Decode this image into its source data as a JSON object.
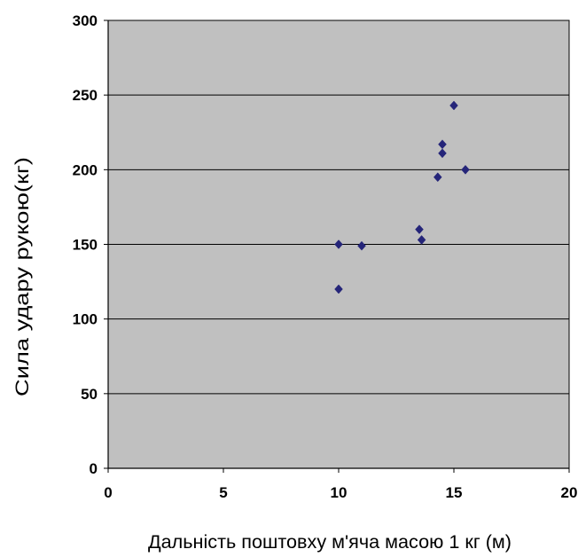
{
  "chart_data": {
    "type": "scatter",
    "title": "",
    "xlabel": "Дальність поштовху м'яча масою 1 кг (м)",
    "ylabel": "Сила удару рукою(кг)",
    "xlim": [
      0,
      20
    ],
    "ylim": [
      0,
      300
    ],
    "x_ticks": [
      "0",
      "5",
      "10",
      "15",
      "20"
    ],
    "y_ticks": [
      "0",
      "50",
      "100",
      "150",
      "200",
      "250",
      "300"
    ],
    "grid": "horizontal",
    "legend": "none",
    "series": [
      {
        "points": [
          {
            "x": 10,
            "y": 120
          },
          {
            "x": 10,
            "y": 150
          },
          {
            "x": 11,
            "y": 149
          },
          {
            "x": 13.5,
            "y": 160
          },
          {
            "x": 13.6,
            "y": 153
          },
          {
            "x": 14.3,
            "y": 195
          },
          {
            "x": 14.5,
            "y": 211
          },
          {
            "x": 14.5,
            "y": 217
          },
          {
            "x": 15,
            "y": 243
          },
          {
            "x": 15.5,
            "y": 200
          }
        ]
      }
    ],
    "colors": {
      "plot_background": "#c0c0c0",
      "marker": "#252579",
      "gridline": "#000000"
    }
  }
}
